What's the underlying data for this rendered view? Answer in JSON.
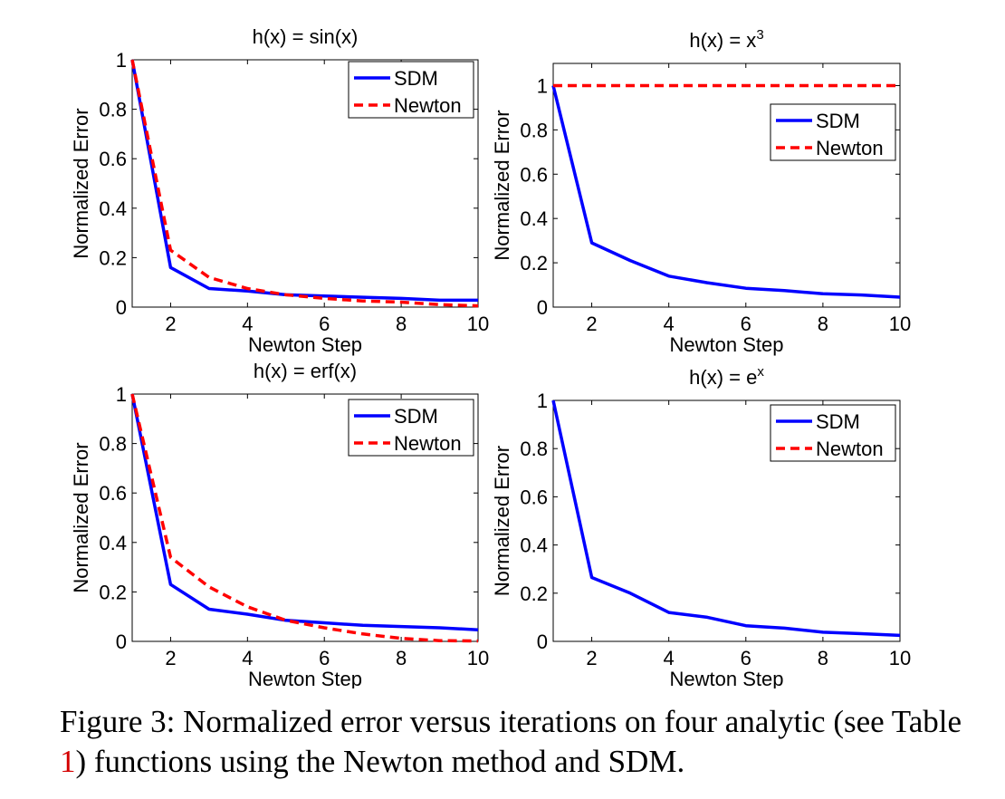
{
  "legend_entries": [
    "SDM",
    "Newton"
  ],
  "colors": {
    "sdm": "#0000ff",
    "newton": "#ff0000"
  },
  "caption": {
    "prefix": "Figure 3: Normalized error versus iterations on four analytic (see Table ",
    "ref": "1",
    "suffix": ") functions using the Newton method and SDM."
  },
  "chart_data": [
    {
      "type": "line",
      "title": "h(x) = sin(x)",
      "title_base": "h(x) = sin(x)",
      "title_sup": "",
      "xlabel": "Newton Step",
      "ylabel": "Normalized Error",
      "xlim": [
        1,
        10
      ],
      "ylim": [
        0,
        1
      ],
      "xticks": [
        2,
        4,
        6,
        8,
        10
      ],
      "yticks": [
        0,
        0.2,
        0.4,
        0.6,
        0.8,
        1
      ],
      "legend": "top-right",
      "grid": false,
      "x": [
        1,
        2,
        3,
        4,
        5,
        6,
        7,
        8,
        9,
        10
      ],
      "series": [
        {
          "name": "SDM",
          "style": "solid",
          "values": [
            1.0,
            0.16,
            0.075,
            0.065,
            0.05,
            0.045,
            0.04,
            0.035,
            0.028,
            0.028
          ]
        },
        {
          "name": "Newton",
          "style": "dashed",
          "values": [
            1.0,
            0.23,
            0.12,
            0.075,
            0.05,
            0.035,
            0.025,
            0.02,
            0.01,
            0.005
          ]
        }
      ]
    },
    {
      "type": "line",
      "title": "h(x) = x3",
      "title_base": "h(x) = x",
      "title_sup": "3",
      "xlabel": "Newton Step",
      "ylabel": "Normalized Error",
      "xlim": [
        1,
        10
      ],
      "ylim": [
        0,
        1.1
      ],
      "xticks": [
        2,
        4,
        6,
        8,
        10
      ],
      "yticks": [
        0,
        0.2,
        0.4,
        0.6,
        0.8,
        1
      ],
      "legend": "top-right",
      "grid": false,
      "x": [
        1,
        2,
        3,
        4,
        5,
        6,
        7,
        8,
        9,
        10
      ],
      "series": [
        {
          "name": "SDM",
          "style": "solid",
          "values": [
            1.0,
            0.29,
            0.21,
            0.14,
            0.11,
            0.085,
            0.075,
            0.06,
            0.055,
            0.045
          ]
        },
        {
          "name": "Newton",
          "style": "dashed",
          "values": [
            1,
            1,
            1,
            1,
            1,
            1,
            1,
            1,
            1,
            1
          ]
        }
      ]
    },
    {
      "type": "line",
      "title": "h(x) = erf(x)",
      "title_base": "h(x) = erf(x)",
      "title_sup": "",
      "xlabel": "Newton Step",
      "ylabel": "Normalized Error",
      "xlim": [
        1,
        10
      ],
      "ylim": [
        0,
        1
      ],
      "xticks": [
        2,
        4,
        6,
        8,
        10
      ],
      "yticks": [
        0,
        0.2,
        0.4,
        0.6,
        0.8,
        1
      ],
      "legend": "top-right",
      "grid": false,
      "x": [
        1,
        2,
        3,
        4,
        5,
        6,
        7,
        8,
        9,
        10
      ],
      "series": [
        {
          "name": "SDM",
          "style": "solid",
          "values": [
            1.0,
            0.23,
            0.13,
            0.11,
            0.085,
            0.075,
            0.065,
            0.06,
            0.055,
            0.047
          ]
        },
        {
          "name": "Newton",
          "style": "dashed",
          "values": [
            1.0,
            0.34,
            0.22,
            0.14,
            0.085,
            0.055,
            0.03,
            0.012,
            0.003,
            0.002
          ]
        }
      ]
    },
    {
      "type": "line",
      "title": "h(x) = ex",
      "title_base": "h(x) = e",
      "title_sup": "x",
      "xlabel": "Newton Step",
      "ylabel": "Normalized Error",
      "xlim": [
        1,
        10
      ],
      "ylim": [
        0,
        1
      ],
      "xticks": [
        2,
        4,
        6,
        8,
        10
      ],
      "yticks": [
        0,
        0.2,
        0.4,
        0.6,
        0.8,
        1
      ],
      "legend": "top-right",
      "grid": false,
      "x": [
        1,
        2,
        3,
        4,
        5,
        6,
        7,
        8,
        9,
        10
      ],
      "series": [
        {
          "name": "SDM",
          "style": "solid",
          "values": [
            1.0,
            0.265,
            0.2,
            0.12,
            0.1,
            0.065,
            0.055,
            0.038,
            0.032,
            0.025
          ]
        }
      ]
    }
  ]
}
